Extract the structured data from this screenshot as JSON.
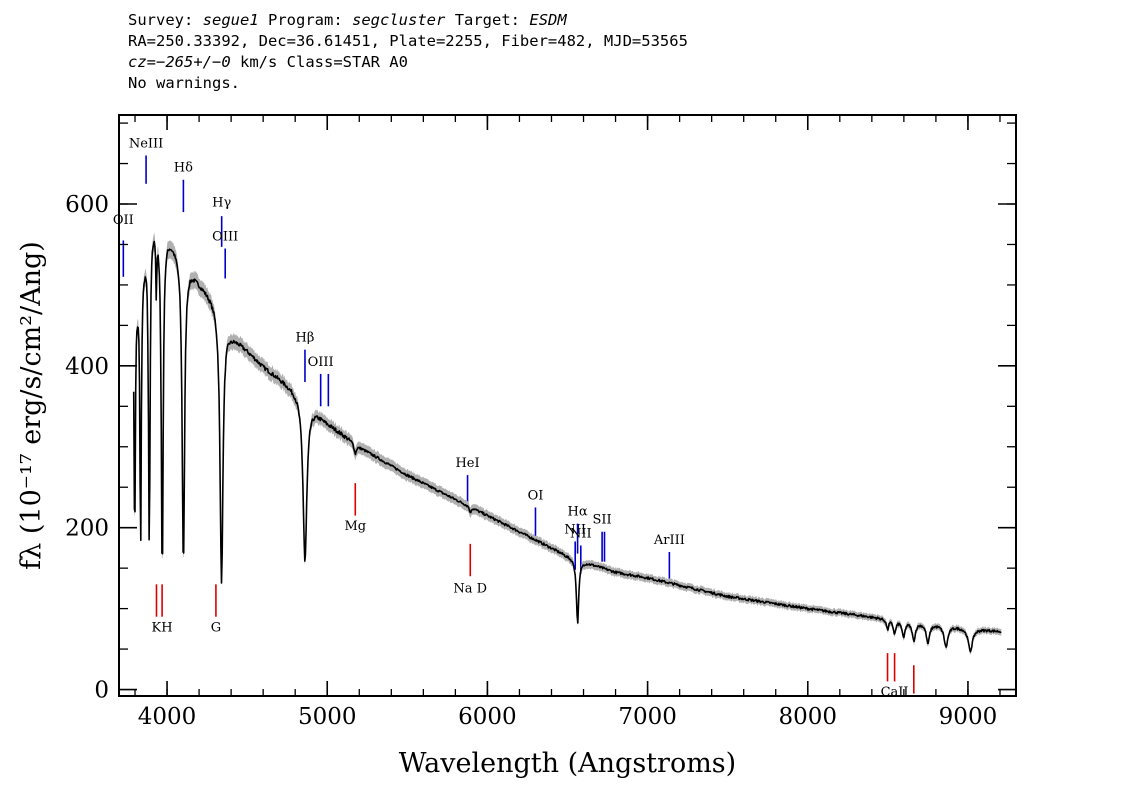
{
  "header": {
    "survey_label": "Survey:",
    "survey_value": "segue1",
    "program_label": "Program:",
    "program_value": "segcluster",
    "target_label": "Target:",
    "target_value": "ESDM",
    "line2": "RA=250.33392, Dec=36.61451, Plate=2255, Fiber=482, MJD=53565",
    "cz_value": "cz=−265+/−0",
    "cz_unit_class": "km/s Class=STAR A0",
    "line4": "No warnings."
  },
  "chart_data": {
    "type": "line",
    "xlabel": "Wavelength (Angstroms)",
    "ylabel": "fλ (10⁻¹⁷ erg/s/cm²/Ang)",
    "xlim": [
      3700,
      9300
    ],
    "ylim": [
      -8,
      710
    ],
    "x_ticks": [
      4000,
      5000,
      6000,
      7000,
      8000,
      9000
    ],
    "x_tick_labels": [
      "4000",
      "5000",
      "6000",
      "7000",
      "8000",
      "9000"
    ],
    "y_ticks": [
      0,
      200,
      400,
      600
    ],
    "y_tick_labels": [
      "0",
      "200",
      "400",
      "600"
    ],
    "x_minor_step": 200,
    "y_minor_step": 50,
    "colors": {
      "spectrum": "#000000",
      "error_band": "#b0b0b0",
      "emission_line": "#0000cc",
      "absorption_line": "#dd0000"
    },
    "continuum": {
      "x": [
        3800,
        3900,
        4000,
        4200,
        4300,
        4400,
        4600,
        4800,
        5000,
        5200,
        5500,
        6000,
        6300,
        6500,
        6800,
        7000,
        7500,
        8000,
        8500,
        9000,
        9200
      ],
      "y": [
        470,
        585,
        565,
        505,
        480,
        440,
        400,
        370,
        330,
        300,
        265,
        215,
        185,
        165,
        145,
        138,
        115,
        100,
        87,
        76,
        72
      ]
    },
    "absorption_dips": [
      {
        "wavelength": 3798,
        "depth": 300,
        "width": 4
      },
      {
        "wavelength": 3835,
        "depth": 330,
        "width": 5
      },
      {
        "wavelength": 3889,
        "depth": 390,
        "width": 6
      },
      {
        "wavelength": 3933,
        "depth": 80,
        "width": 3
      },
      {
        "wavelength": 3970,
        "depth": 430,
        "width": 7
      },
      {
        "wavelength": 4102,
        "depth": 380,
        "width": 9
      },
      {
        "wavelength": 4340,
        "depth": 330,
        "width": 11
      },
      {
        "wavelength": 4861,
        "depth": 200,
        "width": 14
      },
      {
        "wavelength": 5175,
        "depth": 12,
        "width": 8
      },
      {
        "wavelength": 5893,
        "depth": 8,
        "width": 5
      },
      {
        "wavelength": 6563,
        "depth": 78,
        "width": 9
      },
      {
        "wavelength": 8498,
        "depth": 12,
        "width": 8
      },
      {
        "wavelength": 8542,
        "depth": 16,
        "width": 10
      },
      {
        "wavelength": 8598,
        "depth": 20,
        "width": 10
      },
      {
        "wavelength": 8662,
        "depth": 22,
        "width": 12
      },
      {
        "wavelength": 8750,
        "depth": 24,
        "width": 12
      },
      {
        "wavelength": 8863,
        "depth": 26,
        "width": 14
      },
      {
        "wavelength": 9015,
        "depth": 28,
        "width": 16
      }
    ],
    "emission_lines": [
      {
        "label": "OII",
        "wavelength": 3727,
        "y_top": 555,
        "y_bottom": 510,
        "label_y": 575
      },
      {
        "label": "NeIII",
        "wavelength": 3869,
        "y_top": 660,
        "y_bottom": 625,
        "label_y": 670
      },
      {
        "label": "Hδ",
        "wavelength": 4102,
        "y_top": 630,
        "y_bottom": 590,
        "label_y": 640
      },
      {
        "label": "Hγ",
        "wavelength": 4341,
        "y_top": 585,
        "y_bottom": 547,
        "label_y": 597
      },
      {
        "label": "OIII",
        "wavelength": 4363,
        "y_top": 545,
        "y_bottom": 508,
        "label_y": 555
      },
      {
        "label": "Hβ",
        "wavelength": 4861,
        "y_top": 420,
        "y_bottom": 380,
        "label_y": 430
      },
      {
        "label": "OIII",
        "wavelength": 4959,
        "y_top": 390,
        "y_bottom": 350,
        "label_y": 400
      },
      {
        "label": "",
        "wavelength": 5007,
        "y_top": 390,
        "y_bottom": 350,
        "label_y": 0
      },
      {
        "label": "HeI",
        "wavelength": 5876,
        "y_top": 265,
        "y_bottom": 225,
        "label_y": 275
      },
      {
        "label": "OI",
        "wavelength": 6300,
        "y_top": 225,
        "y_bottom": 188,
        "label_y": 235
      },
      {
        "label": "NII",
        "wavelength": 6548,
        "y_top": 183,
        "y_bottom": 148,
        "label_y": 193
      },
      {
        "label": "Hα",
        "wavelength": 6563,
        "y_top": 205,
        "y_bottom": 168,
        "label_y": 215
      },
      {
        "label": "NII",
        "wavelength": 6583,
        "y_top": 178,
        "y_bottom": 143,
        "label_y": 188
      },
      {
        "label": "SII",
        "wavelength": 6716,
        "y_top": 195,
        "y_bottom": 158,
        "label_y": 205
      },
      {
        "label": "",
        "wavelength": 6731,
        "y_top": 195,
        "y_bottom": 158,
        "label_y": 0
      },
      {
        "label": "ArIII",
        "wavelength": 7136,
        "y_top": 170,
        "y_bottom": 133,
        "label_y": 180
      }
    ],
    "absorption_lines": [
      {
        "label": "",
        "wavelength": 3934,
        "y_top": 130,
        "y_bottom": 90,
        "label_y": 0
      },
      {
        "label": "KH",
        "wavelength": 3969,
        "y_top": 130,
        "y_bottom": 90,
        "label_y": 72
      },
      {
        "label": "G",
        "wavelength": 4305,
        "y_top": 130,
        "y_bottom": 90,
        "label_y": 72
      },
      {
        "label": "Mg",
        "wavelength": 5175,
        "y_top": 255,
        "y_bottom": 215,
        "label_y": 197
      },
      {
        "label": "Na D",
        "wavelength": 5893,
        "y_top": 180,
        "y_bottom": 140,
        "label_y": 120
      },
      {
        "label": "",
        "wavelength": 8498,
        "y_top": 45,
        "y_bottom": 10,
        "label_y": 0
      },
      {
        "label": "CaII",
        "wavelength": 8542,
        "y_top": 45,
        "y_bottom": 10,
        "label_y": -8
      },
      {
        "label": "",
        "wavelength": 8662,
        "y_top": 30,
        "y_bottom": -5,
        "label_y": 0
      }
    ]
  }
}
